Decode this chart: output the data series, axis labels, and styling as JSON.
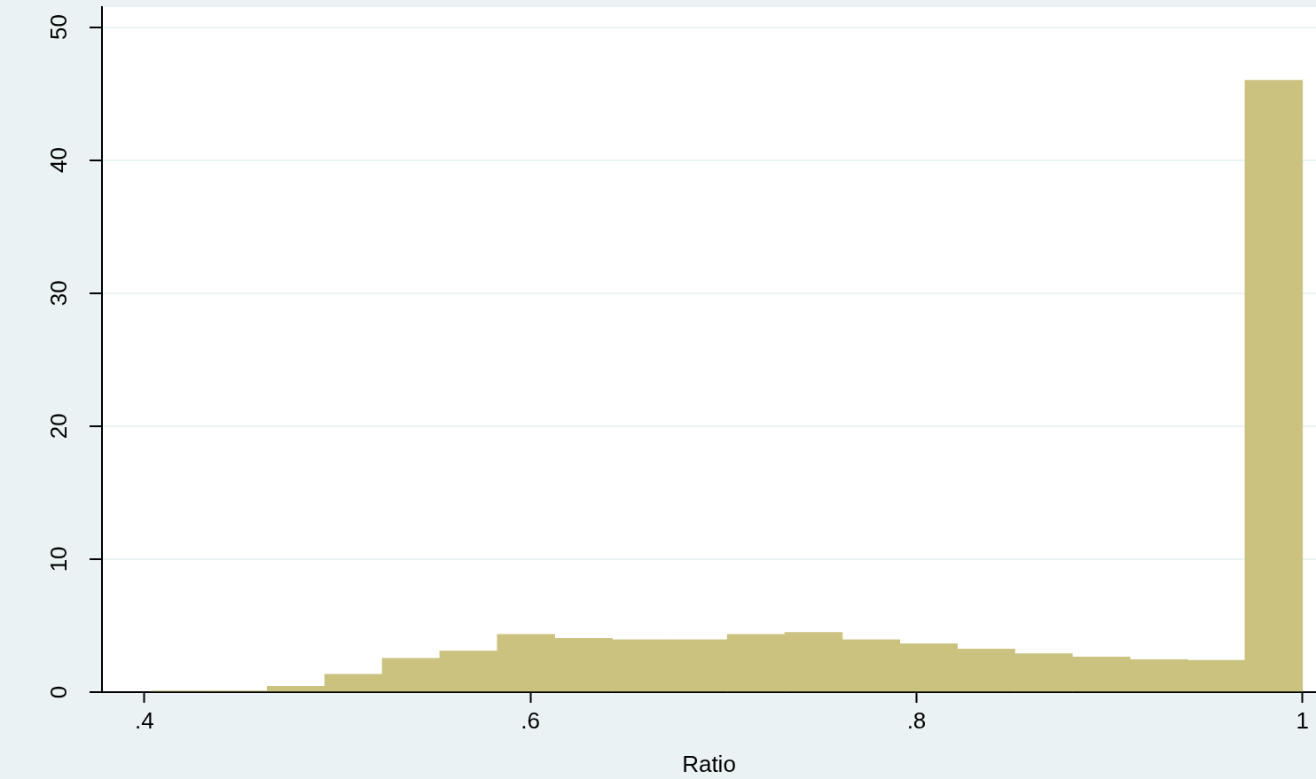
{
  "chart_data": {
    "type": "histogram",
    "xlabel": "Ratio",
    "bins": [
      0.404,
      0.4338,
      0.4636,
      0.4934,
      0.5232,
      0.553,
      0.5828,
      0.6126,
      0.6424,
      0.6722,
      0.702,
      0.7318,
      0.7616,
      0.7914,
      0.8212,
      0.851,
      0.8808,
      0.9106,
      0.9404,
      0.9702,
      1.0
    ],
    "values": [
      0.1,
      0.1,
      0.45,
      1.35,
      2.55,
      3.1,
      4.35,
      4.05,
      3.95,
      3.95,
      4.35,
      4.5,
      3.95,
      3.65,
      3.25,
      2.9,
      2.65,
      2.45,
      2.4,
      46
    ],
    "color": "#cbc27f",
    "xlim": [
      0.378,
      1.007
    ],
    "xticks": [
      {
        "value": 0.4,
        "label": ".4"
      },
      {
        "value": 0.6,
        "label": ".6"
      },
      {
        "value": 0.8,
        "label": ".8"
      },
      {
        "value": 1,
        "label": "1"
      }
    ],
    "ylim": [
      0,
      51.5
    ],
    "yticks": [
      0,
      10,
      20,
      30,
      40,
      50
    ],
    "grid": "y"
  }
}
